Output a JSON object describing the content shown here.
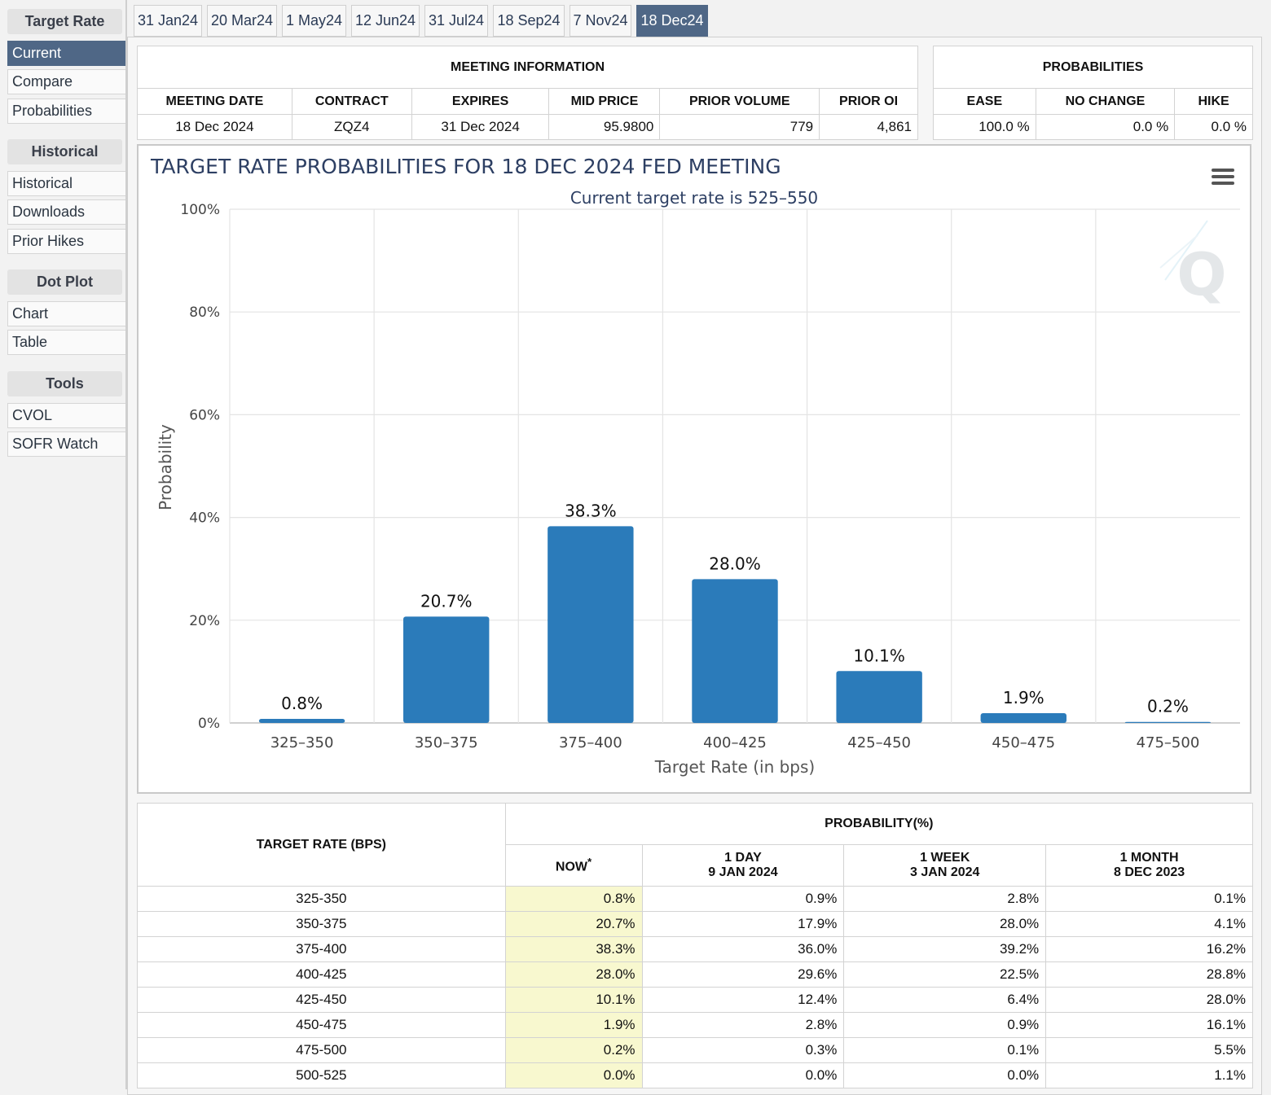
{
  "sidebar": {
    "sections": [
      {
        "title": "Target Rate",
        "items": [
          "Current",
          "Compare",
          "Probabilities"
        ]
      },
      {
        "title": "Historical",
        "items": [
          "Historical",
          "Downloads",
          "Prior Hikes"
        ]
      },
      {
        "title": "Dot Plot",
        "items": [
          "Chart",
          "Table"
        ]
      },
      {
        "title": "Tools",
        "items": [
          "CVOL",
          "SOFR Watch"
        ]
      }
    ],
    "active_item": "Current"
  },
  "tabs": [
    "31 Jan24",
    "20 Mar24",
    "1 May24",
    "12 Jun24",
    "31 Jul24",
    "18 Sep24",
    "7 Nov24",
    "18 Dec24"
  ],
  "active_tab": "18 Dec24",
  "meeting_info": {
    "caption": "MEETING INFORMATION",
    "headers": [
      "MEETING DATE",
      "CONTRACT",
      "EXPIRES",
      "MID PRICE",
      "PRIOR VOLUME",
      "PRIOR OI"
    ],
    "values": [
      "18 Dec 2024",
      "ZQZ4",
      "31 Dec 2024",
      "95.9800",
      "779",
      "4,861"
    ]
  },
  "probabilities": {
    "caption": "PROBABILITIES",
    "headers": [
      "EASE",
      "NO CHANGE",
      "HIKE"
    ],
    "values": [
      "100.0 %",
      "0.0 %",
      "0.0 %"
    ]
  },
  "chart_data": {
    "type": "bar",
    "title": "TARGET RATE PROBABILITIES FOR 18 DEC 2024 FED MEETING",
    "subtitle": "Current target rate is 525–550",
    "xlabel": "Target Rate (in bps)",
    "ylabel": "Probability",
    "categories": [
      "325–350",
      "350–375",
      "375–400",
      "400–425",
      "425–450",
      "450–475",
      "475–500"
    ],
    "values": [
      0.8,
      20.7,
      38.3,
      28.0,
      10.1,
      1.9,
      0.2
    ],
    "data_labels": [
      "0.8%",
      "20.7%",
      "38.3%",
      "28.0%",
      "10.1%",
      "1.9%",
      "0.2%"
    ],
    "yticks": [
      "0%",
      "20%",
      "40%",
      "60%",
      "80%",
      "100%"
    ],
    "ylim": [
      0,
      100
    ],
    "grid": true,
    "bar_color": "#2b7bba"
  },
  "prob_table": {
    "rate_header": "TARGET RATE (BPS)",
    "group_header": "PROBABILITY(%)",
    "col_headers": [
      {
        "line1": "NOW",
        "line2": ""
      },
      {
        "line1": "1 DAY",
        "line2": "9 JAN 2024"
      },
      {
        "line1": "1 WEEK",
        "line2": "3 JAN 2024"
      },
      {
        "line1": "1 MONTH",
        "line2": "8 DEC 2023"
      }
    ],
    "now_marker": "*",
    "rows": [
      [
        "325-350",
        "0.8%",
        "0.9%",
        "2.8%",
        "0.1%"
      ],
      [
        "350-375",
        "20.7%",
        "17.9%",
        "28.0%",
        "4.1%"
      ],
      [
        "375-400",
        "38.3%",
        "36.0%",
        "39.2%",
        "16.2%"
      ],
      [
        "400-425",
        "28.0%",
        "29.6%",
        "22.5%",
        "28.8%"
      ],
      [
        "425-450",
        "10.1%",
        "12.4%",
        "6.4%",
        "28.0%"
      ],
      [
        "450-475",
        "1.9%",
        "2.8%",
        "0.9%",
        "16.1%"
      ],
      [
        "475-500",
        "0.2%",
        "0.3%",
        "0.1%",
        "5.5%"
      ],
      [
        "500-525",
        "0.0%",
        "0.0%",
        "0.0%",
        "1.1%"
      ]
    ]
  },
  "colors": {
    "accent": "#4f6786",
    "now_highlight": "#f8f8cf",
    "title": "#2d3f63"
  },
  "icons": {
    "menu": "hamburger-menu-icon",
    "watermark": "quikstrike-q-logo"
  }
}
